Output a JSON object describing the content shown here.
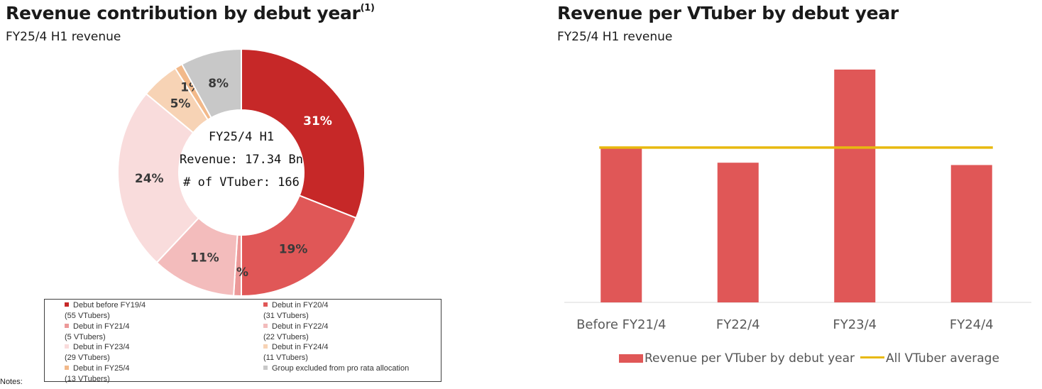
{
  "left_panel": {
    "title": "Revenue contribution by debut year",
    "title_note": "(1)",
    "subtitle": "FY25/4 H1 revenue",
    "center_line1": "FY25/4 H1",
    "center_line2": "Revenue: 17.34 Bn",
    "center_line3": "# of VTuber: 166",
    "notes": "Notes:"
  },
  "right_panel": {
    "title": "Revenue per VTuber by debut year",
    "subtitle": "FY25/4 H1 revenue"
  },
  "chart_data": [
    {
      "type": "pie",
      "subtype": "donut",
      "slices": [
        {
          "label": "Debut before FY19/4",
          "sub": "(55 VTubers)",
          "value": 31,
          "value_label": "31%",
          "color": "#c62828",
          "label_color": "#ffffff"
        },
        {
          "label": "Debut in FY20/4",
          "sub": "(31 VTubers)",
          "value": 19,
          "value_label": "19%",
          "color": "#e05757",
          "label_color": "#3a3a3a"
        },
        {
          "label": "Debut in FY21/4",
          "sub": "(5 VTubers)",
          "value": 1,
          "value_label": "1%",
          "color": "#ec9999",
          "label_color": "#3a3a3a"
        },
        {
          "label": "Debut in FY22/4",
          "sub": "(22 VTubers)",
          "value": 11,
          "value_label": "11%",
          "color": "#f3bcbc",
          "label_color": "#3a3a3a"
        },
        {
          "label": "Debut in FY23/4",
          "sub": "(29 VTubers)",
          "value": 24,
          "value_label": "24%",
          "color": "#f9dcdc",
          "label_color": "#3a3a3a"
        },
        {
          "label": "Debut in FY24/4",
          "sub": "(11 VTubers)",
          "value": 5,
          "value_label": "5%",
          "color": "#f7d3b5",
          "label_color": "#3a3a3a"
        },
        {
          "label": "Debut in FY25/4",
          "sub": "(13 VTubers)",
          "value": 1,
          "value_label": "1%",
          "color": "#f2b98a",
          "label_color": "#3a3a3a"
        },
        {
          "label": "Group excluded from pro rata allocation",
          "sub": "",
          "value": 8,
          "value_label": "8%",
          "color": "#c8c8c8",
          "label_color": "#3a3a3a"
        }
      ],
      "legend_placement": "bottom"
    },
    {
      "type": "bar",
      "categories": [
        "Before FY21/4",
        "FY22/4",
        "FY23/4",
        "FY24/4"
      ],
      "series": [
        {
          "name": "Revenue per VTuber by debut year",
          "values": [
            0.66,
            0.6,
            1.0,
            0.59
          ],
          "color": "#e05757"
        }
      ],
      "reference_line": {
        "name": "All VTuber average",
        "value": 0.665,
        "color": "#e8b90f"
      },
      "ylim": [
        0,
        1.0
      ],
      "grid": false,
      "legend_placement": "bottom"
    }
  ]
}
